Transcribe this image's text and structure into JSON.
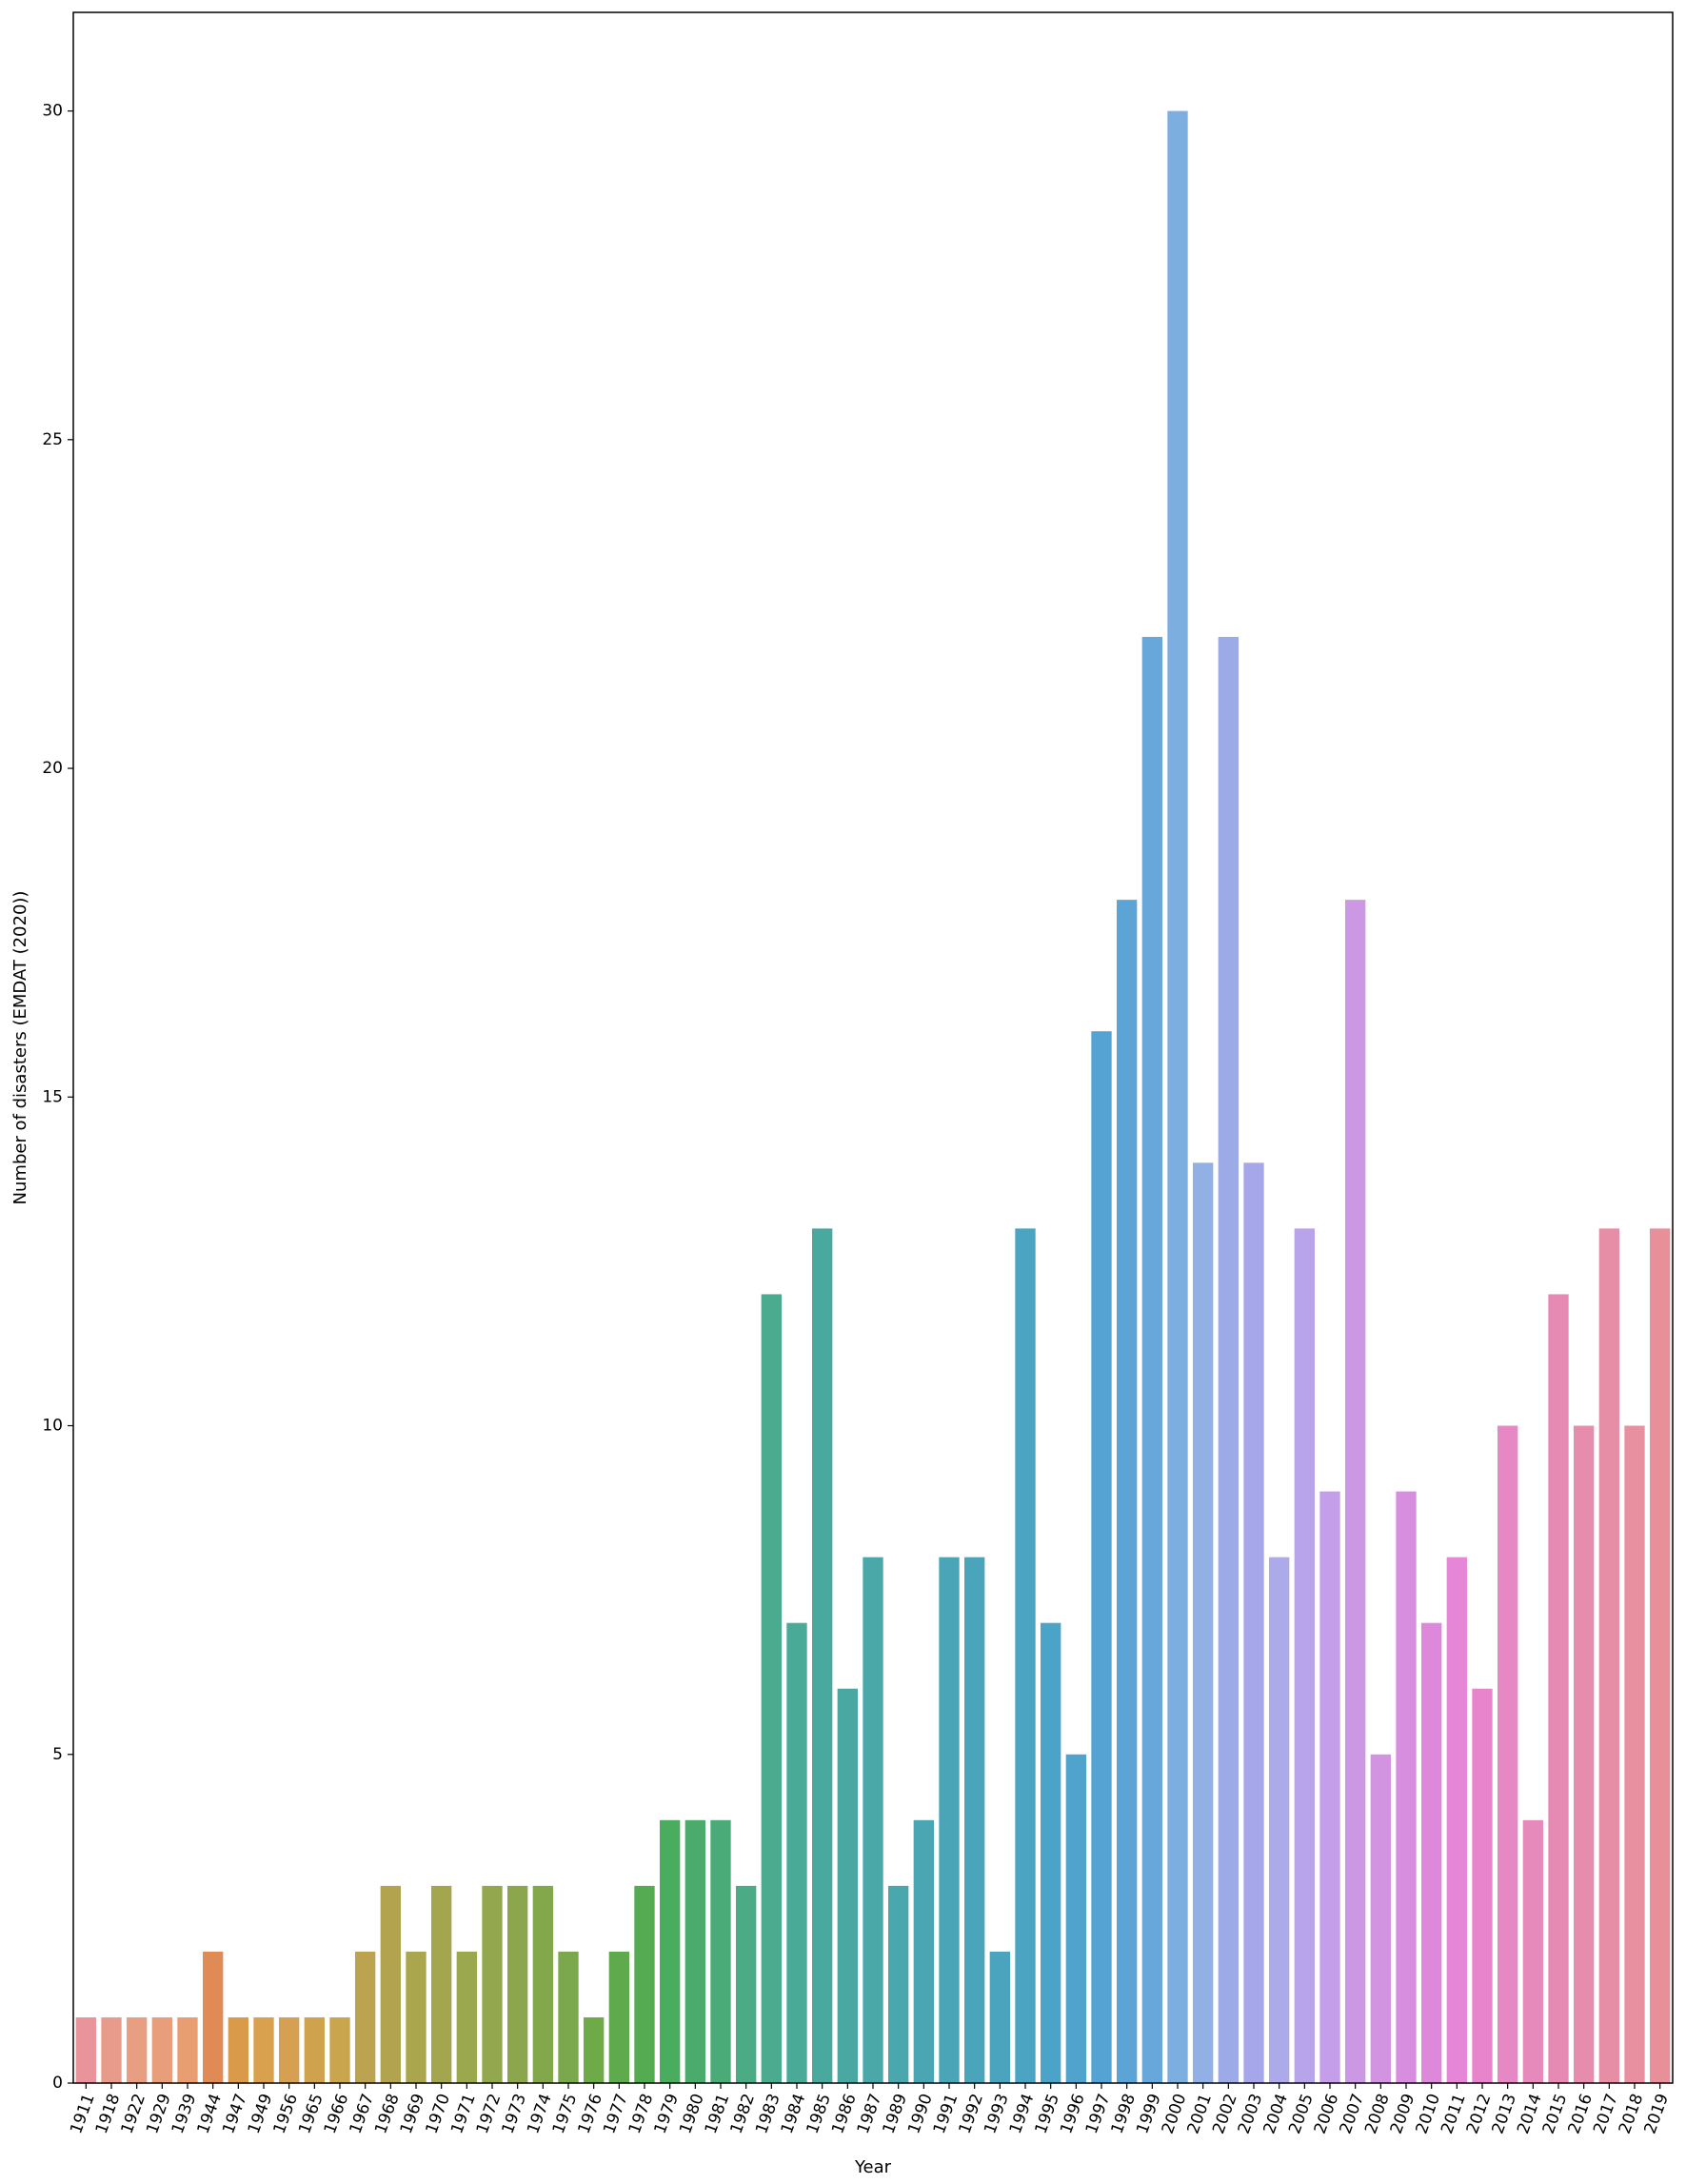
{
  "chart_data": {
    "type": "bar",
    "xlabel": "Year",
    "ylabel": "Number of disasters (EMDAT (2020))",
    "ylim": [
      0,
      31.5
    ],
    "yticks": [
      0,
      5,
      10,
      15,
      20,
      25,
      30
    ],
    "grid": false,
    "legend": "none",
    "categories": [
      "1911",
      "1918",
      "1922",
      "1929",
      "1939",
      "1944",
      "1947",
      "1949",
      "1956",
      "1965",
      "1966",
      "1967",
      "1968",
      "1969",
      "1970",
      "1971",
      "1972",
      "1973",
      "1974",
      "1975",
      "1976",
      "1977",
      "1978",
      "1979",
      "1980",
      "1981",
      "1982",
      "1983",
      "1984",
      "1985",
      "1986",
      "1987",
      "1989",
      "1990",
      "1991",
      "1992",
      "1993",
      "1994",
      "1995",
      "1996",
      "1997",
      "1998",
      "1999",
      "2000",
      "2001",
      "2002",
      "2003",
      "2004",
      "2005",
      "2006",
      "2007",
      "2008",
      "2009",
      "2010",
      "2011",
      "2012",
      "2013",
      "2014",
      "2015",
      "2016",
      "2017",
      "2018",
      "2019"
    ],
    "values": [
      1,
      1,
      1,
      1,
      1,
      2,
      1,
      1,
      1,
      1,
      1,
      2,
      3,
      2,
      3,
      2,
      3,
      3,
      3,
      2,
      1,
      2,
      3,
      4,
      4,
      4,
      3,
      12,
      7,
      13,
      6,
      8,
      3,
      4,
      8,
      8,
      2,
      13,
      7,
      5,
      16,
      18,
      22,
      30,
      14,
      22,
      14,
      8,
      13,
      9,
      18,
      5,
      9,
      7,
      8,
      6,
      10,
      4,
      12,
      10,
      13,
      10,
      13
    ],
    "colors": [
      "#e8949a",
      "#e89a8b",
      "#e89e80",
      "#e89e7a",
      "#e89e70",
      "#e08a55",
      "#d99a4a",
      "#d9a04e",
      "#d5a052",
      "#cfa34e",
      "#c9a54e",
      "#bca350",
      "#b2a44e",
      "#a9a64e",
      "#a3a64e",
      "#9ca84e",
      "#93a84e",
      "#8ca64e",
      "#83a84c",
      "#7ba84c",
      "#6eaa48",
      "#5faa4c",
      "#54ab52",
      "#4aac5e",
      "#4aab6c",
      "#4aab78",
      "#4aab84",
      "#4aab8e",
      "#4aaa98",
      "#4aa99e",
      "#4aa8a3",
      "#4aa8a8",
      "#4aa7ad",
      "#4aa6b2",
      "#4aa6b6",
      "#4aa5ba",
      "#4aa4be",
      "#4aa4c2",
      "#4ba3c8",
      "#50a3cd",
      "#55a3d2",
      "#5ca4d6",
      "#68a7da",
      "#7daee0",
      "#90b0e6",
      "#9caae8",
      "#a6a6ea",
      "#adaaea",
      "#b8a4ea",
      "#c49ee8",
      "#cc98e4",
      "#d294e0",
      "#d88ede",
      "#de88dc",
      "#e686d6",
      "#e884cc",
      "#e688c4",
      "#e68abc",
      "#e68ab4",
      "#e68cac",
      "#e68ea6",
      "#e890a0",
      "#e8909a"
    ]
  }
}
